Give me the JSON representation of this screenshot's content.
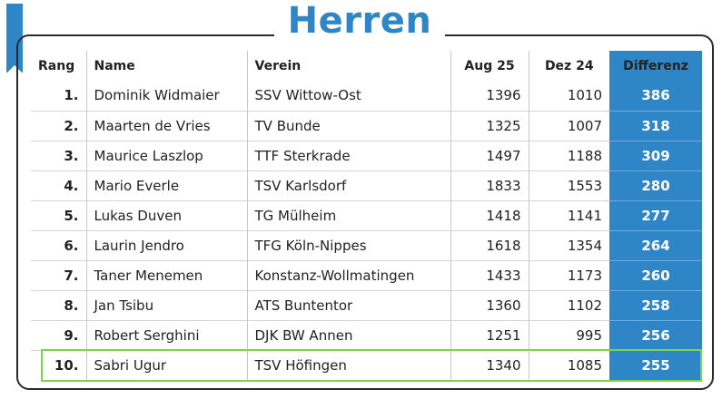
{
  "title": "Herren",
  "colors": {
    "accent": "#2f86c6",
    "highlight": "#7fd34b"
  },
  "headers": {
    "rang": "Rang",
    "name": "Name",
    "verein": "Verein",
    "aug": "Aug 25",
    "dez": "Dez 24",
    "diff": "Differenz"
  },
  "rows": [
    {
      "rang": "1.",
      "name": "Dominik  Widmaier",
      "verein": "SSV Wittow-Ost",
      "aug": "1396",
      "dez": "1010",
      "diff": "386"
    },
    {
      "rang": "2.",
      "name": "Maarten de Vries",
      "verein": "TV Bunde",
      "aug": "1325",
      "dez": "1007",
      "diff": "318"
    },
    {
      "rang": "3.",
      "name": "Maurice Laszlop",
      "verein": "TTF Sterkrade",
      "aug": "1497",
      "dez": "1188",
      "diff": "309"
    },
    {
      "rang": "4.",
      "name": "Mario Everle",
      "verein": "TSV Karlsdorf",
      "aug": "1833",
      "dez": "1553",
      "diff": "280"
    },
    {
      "rang": "5.",
      "name": "Lukas Duven",
      "verein": "TG Mülheim",
      "aug": "1418",
      "dez": "1141",
      "diff": "277"
    },
    {
      "rang": "6.",
      "name": "Laurin Jendro",
      "verein": "TFG Köln-Nippes",
      "aug": "1618",
      "dez": "1354",
      "diff": "264"
    },
    {
      "rang": "7.",
      "name": "Taner Menemen",
      "verein": "Konstanz-Wollmatingen",
      "aug": "1433",
      "dez": "1173",
      "diff": "260"
    },
    {
      "rang": "8.",
      "name": "Jan Tsibu",
      "verein": "ATS Buntentor",
      "aug": "1360",
      "dez": "1102",
      "diff": "258"
    },
    {
      "rang": "9.",
      "name": "Robert Serghini",
      "verein": "DJK BW Annen",
      "aug": "1251",
      "dez": "995",
      "diff": "256"
    },
    {
      "rang": "10.",
      "name": "Sabri Ugur",
      "verein": "TSV Höfingen",
      "aug": "1340",
      "dez": "1085",
      "diff": "255"
    }
  ]
}
